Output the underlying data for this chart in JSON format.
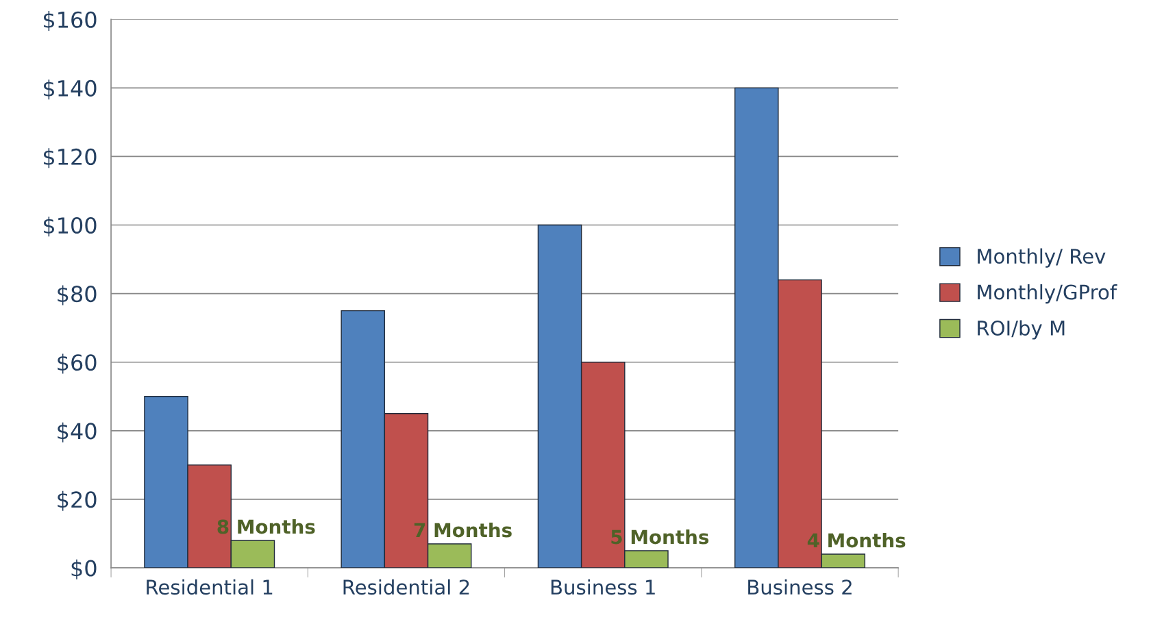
{
  "chart_data": {
    "type": "bar",
    "categories": [
      "Residential 1",
      "Residential 2",
      "Business 1",
      "Business 2"
    ],
    "series": [
      {
        "name": "Monthly/ Rev",
        "color": "#4f81bd",
        "values": [
          50,
          75,
          100,
          140
        ]
      },
      {
        "name": "Monthly/GProf",
        "color": "#c0504d",
        "values": [
          30,
          45,
          60,
          84
        ]
      },
      {
        "name": "ROI/by M",
        "color": "#9bbb59",
        "values": [
          8,
          7,
          5,
          4
        ],
        "value_labels": [
          "8 Months",
          "7 Months",
          "5 Months",
          "4 Months"
        ]
      }
    ],
    "ylim": [
      0,
      160
    ],
    "yticks": [
      {
        "value": 0,
        "label": "$0"
      },
      {
        "value": 20,
        "label": "$20"
      },
      {
        "value": 40,
        "label": "$40"
      },
      {
        "value": 60,
        "label": "$60"
      },
      {
        "value": 80,
        "label": "$80"
      },
      {
        "value": 100,
        "label": "$100"
      },
      {
        "value": 120,
        "label": "$120"
      },
      {
        "value": 140,
        "label": "$140"
      },
      {
        "value": 160,
        "label": "$160"
      }
    ],
    "grid": "y",
    "legend": "right"
  }
}
